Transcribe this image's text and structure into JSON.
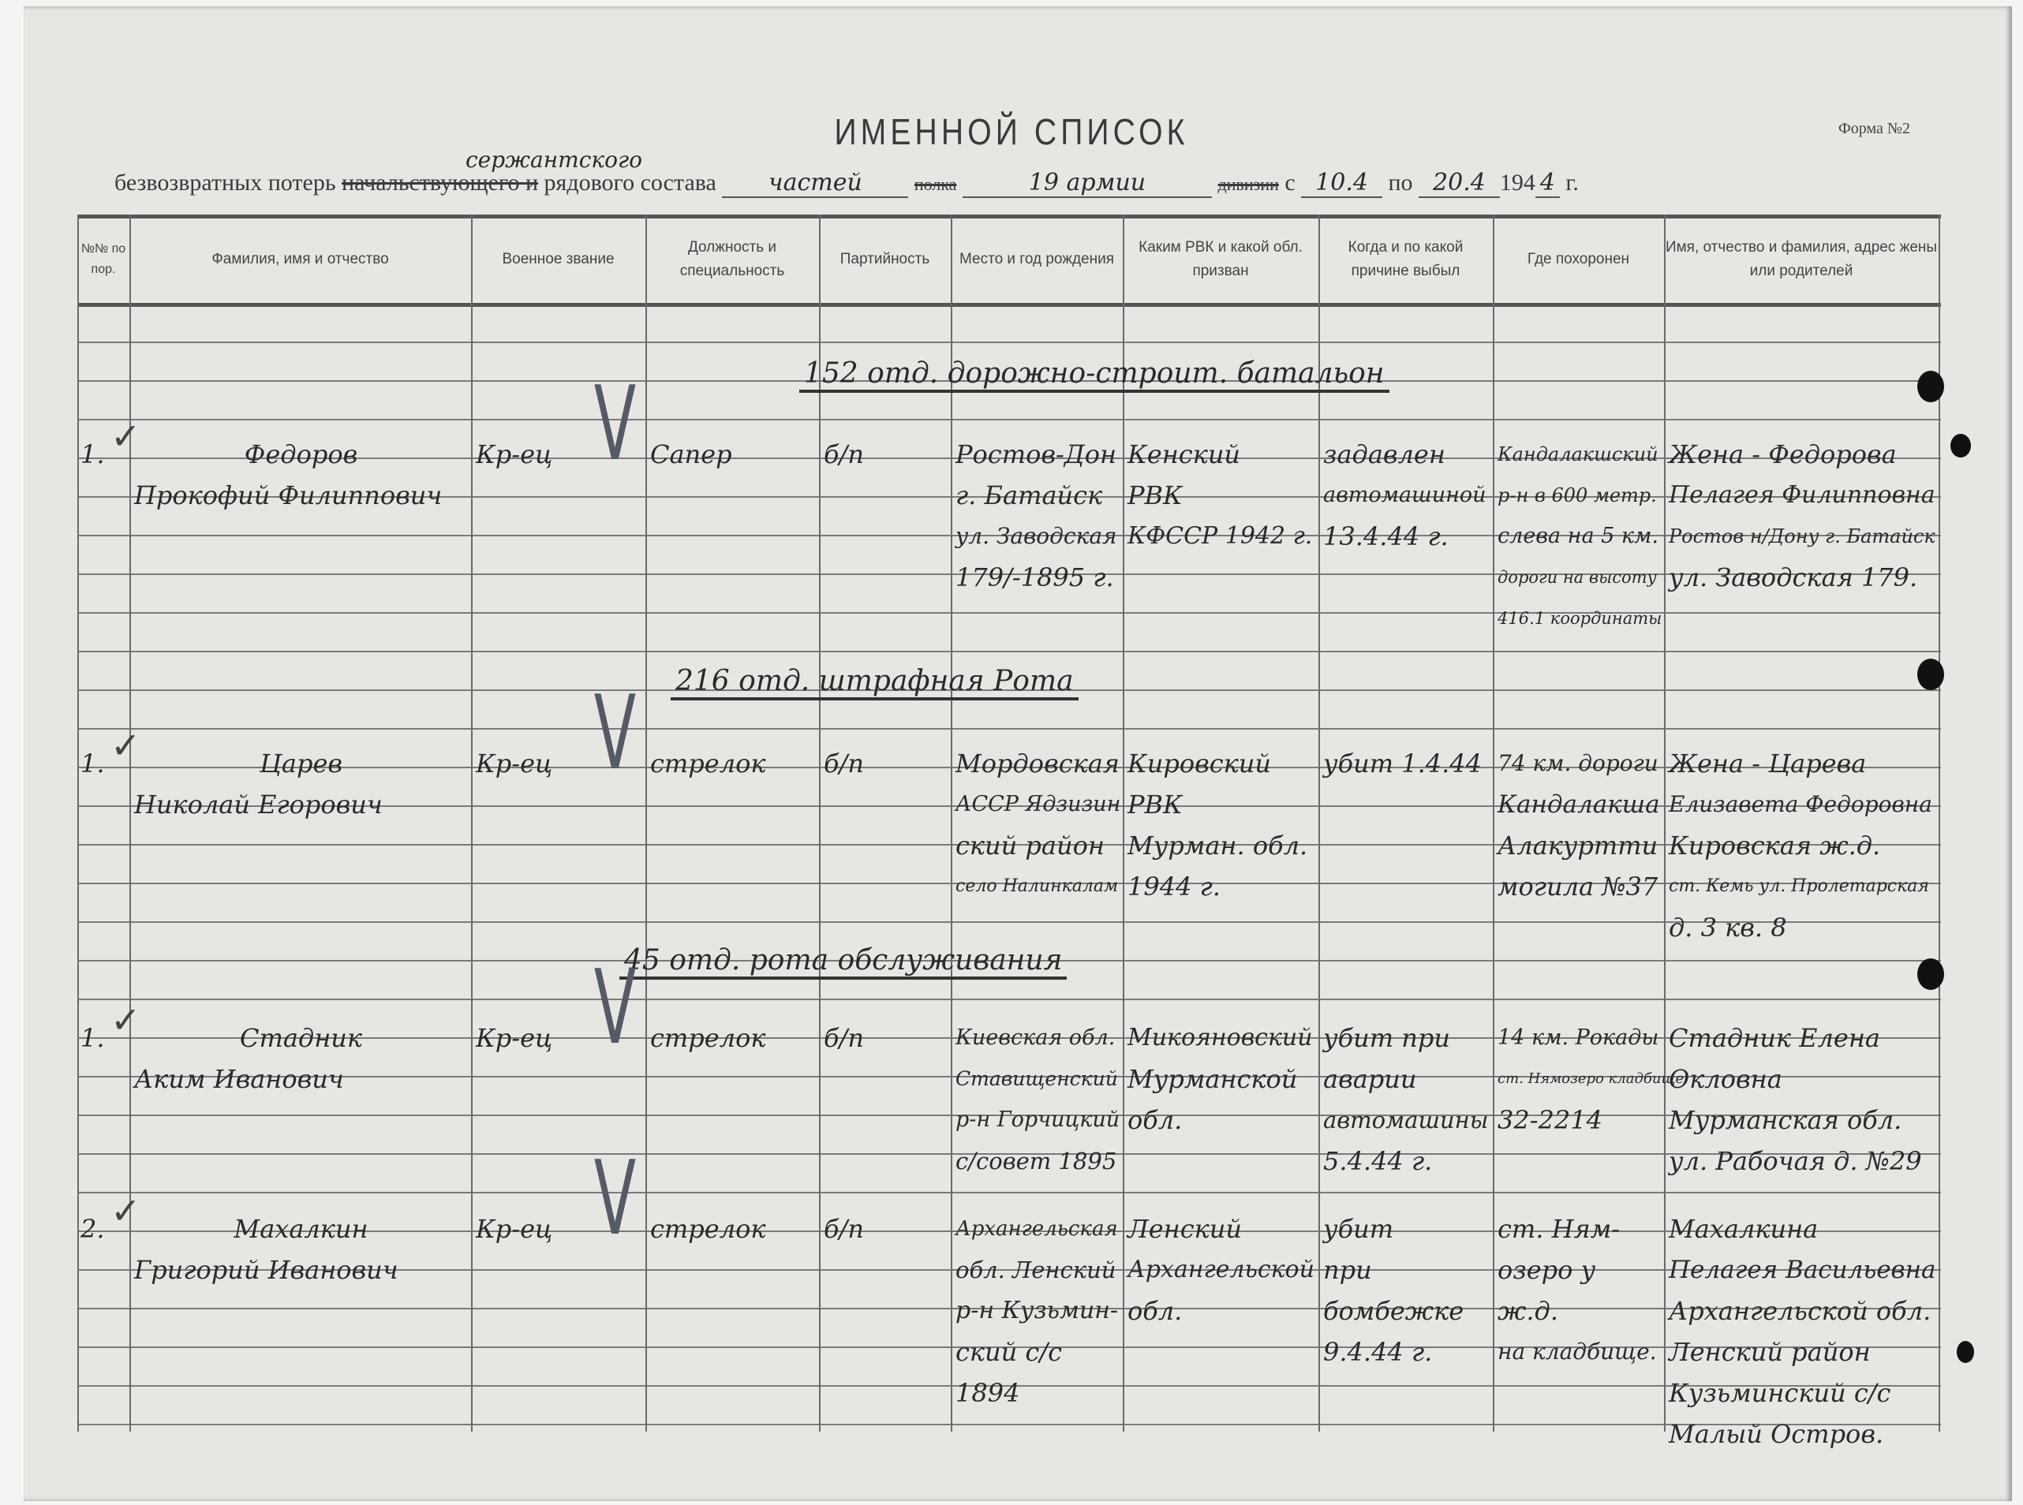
{
  "header": {
    "form_number": "Форма №2",
    "title": "ИМЕННОЙ СПИСОК",
    "subtitle_prefix": "безвозвратных потерь",
    "struck_category": "начальствующего и",
    "handwritten_category": "сержантского",
    "subtitle_middle": "рядового состава",
    "unit_handwritten": "частей",
    "struck_regiment": "полка",
    "army_handwritten": "19 армии",
    "struck_division": "дивизии",
    "from_label": "с",
    "from_date": "10.4",
    "to_label": "по",
    "to_date": "20.4",
    "year_prefix": "194",
    "year_digit": "4",
    "year_suffix": "г."
  },
  "columns": [
    "№№ по пор.",
    "Фамилия, имя и отчество",
    "Военное звание",
    "Должность и специальность",
    "Партийность",
    "Место и год рождения",
    "Каким РВК и какой обл. призван",
    "Когда и по какой причине выбыл",
    "Где похоронен",
    "Имя, отчество и фамилия, адрес жены или родителей"
  ],
  "sections": [
    {
      "title": "152 отд. дорожно-строит. батальон",
      "entries": [
        {
          "number": "1.",
          "name": [
            "Федоров",
            "Прокофий Филиппович"
          ],
          "rank": [
            "Кр-ец"
          ],
          "position": [
            "Сапер"
          ],
          "party": [
            "б/п"
          ],
          "birth": [
            "Ростов-Дон",
            "г. Батайск",
            "ул. Заводская",
            "179/-1895 г."
          ],
          "rvk": [
            "Кенский",
            "РВК",
            "КФССР 1942 г."
          ],
          "when": [
            "задавлен",
            "автомашиной",
            "13.4.44 г."
          ],
          "buried": [
            "Кандалакшский",
            "р-н в 600 метр.",
            "слева на 5 км.",
            "дороги на высоту",
            "416.1 координаты"
          ],
          "relatives": [
            "Жена - Федорова",
            "Пелагея Филипповна",
            "Ростов н/Дону г. Батайск",
            "ул. Заводская 179."
          ]
        }
      ]
    },
    {
      "title": "216 отд. штрафная Рота",
      "entries": [
        {
          "number": "1.",
          "name": [
            "Царев",
            "Николай Егорович"
          ],
          "rank": [
            "Кр-ец"
          ],
          "position": [
            "стрелок"
          ],
          "party": [
            "б/п"
          ],
          "birth": [
            "Мордовская",
            "АССР Ядзизин",
            "ский район",
            "село Налинкалам"
          ],
          "rvk": [
            "Кировский",
            "РВК",
            "Мурман. обл.",
            "1944 г."
          ],
          "when": [
            "убит 1.4.44"
          ],
          "buried": [
            "74 км. дороги",
            "Кандалакша",
            "Алакуртти",
            "могила №37"
          ],
          "relatives": [
            "Жена - Царева",
            "Елизавета Федоровна",
            "Кировская ж.д.",
            "ст. Кемь ул. Пролетарская",
            "д. 3 кв. 8"
          ]
        }
      ]
    },
    {
      "title": "45 отд. рота обслуживания",
      "entries": [
        {
          "number": "1.",
          "name": [
            "Стадник",
            "Аким Иванович"
          ],
          "rank": [
            "Кр-ец"
          ],
          "position": [
            "стрелок"
          ],
          "party": [
            "б/п"
          ],
          "birth": [
            "Киевская обл.",
            "Ставищенский",
            "р-н Горчицкий",
            "с/совет 1895"
          ],
          "rvk": [
            "Микояновский",
            "Мурманской",
            "обл."
          ],
          "when": [
            "убит при",
            "аварии",
            "автомашины",
            "5.4.44 г."
          ],
          "buried": [
            "14 км. Рокады",
            "ст. Нямозеро кладбище",
            "32-2214"
          ],
          "relatives": [
            "Стадник Елена",
            "Окловна",
            "Мурманская обл.",
            "ул. Рабочая д. №29"
          ]
        },
        {
          "number": "2.",
          "name": [
            "Махалкин",
            "Григорий Иванович"
          ],
          "rank": [
            "Кр-ец"
          ],
          "position": [
            "стрелок"
          ],
          "party": [
            "б/п"
          ],
          "birth": [
            "Архангельская",
            "обл. Ленский",
            "р-н Кузьмин-",
            "ский с/с",
            "1894"
          ],
          "rvk": [
            "Ленский",
            "Архангельской",
            "обл."
          ],
          "when": [
            "убит",
            "при",
            "бомбежке",
            "9.4.44 г."
          ],
          "buried": [
            "ст. Ням-",
            "озеро у",
            "ж.д.",
            "на кладбище."
          ],
          "relatives": [
            "Махалкина",
            "Пелагея Васильевна",
            "Архангельской обл.",
            "Ленский район",
            "Кузьминский с/с",
            "Малый Остров."
          ]
        }
      ]
    }
  ]
}
